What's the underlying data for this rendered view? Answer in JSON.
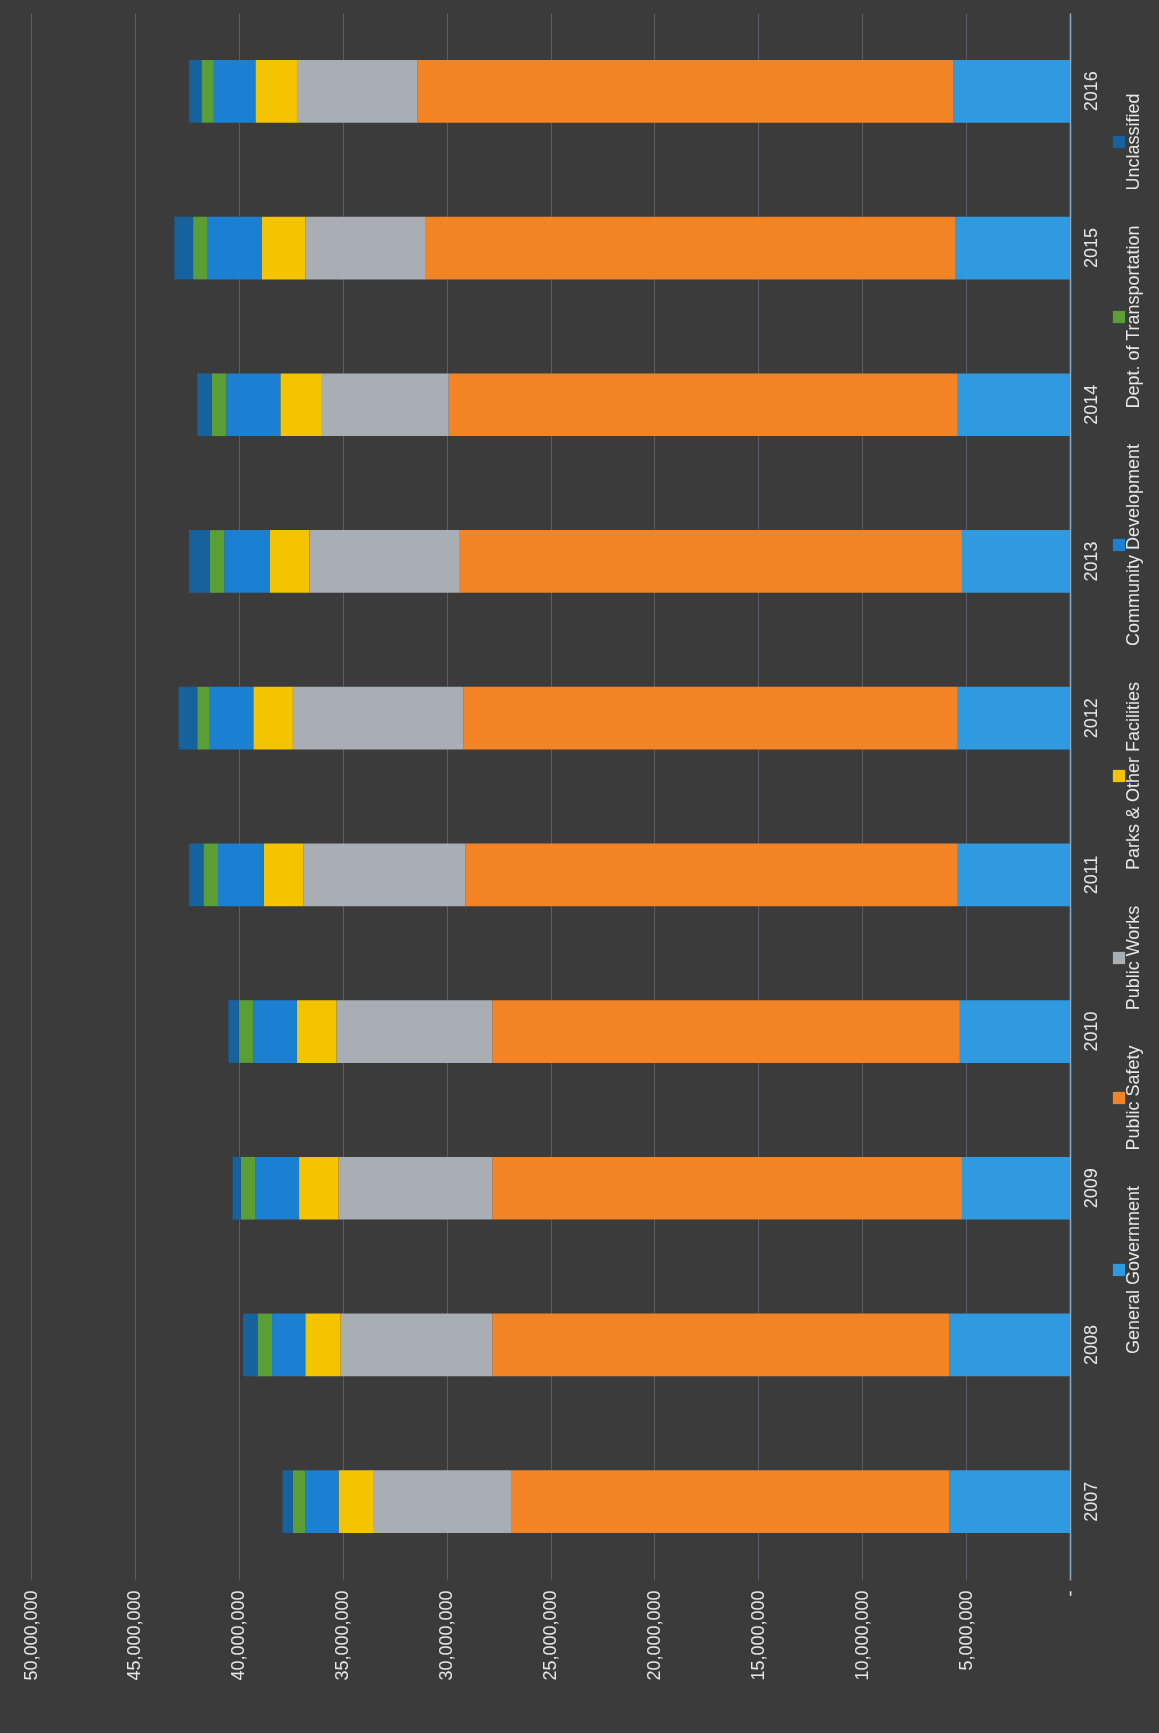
{
  "chart_data": {
    "type": "bar",
    "stacked": true,
    "orientation": "horizontal",
    "categories": [
      "2016",
      "2015",
      "2014",
      "2013",
      "2012",
      "2011",
      "2010",
      "2009",
      "2008",
      "2007"
    ],
    "series": [
      {
        "name": "General Government",
        "color": "#2f9ae0",
        "values": [
          5600000,
          5500000,
          5400000,
          5200000,
          5400000,
          5400000,
          5300000,
          5200000,
          5800000,
          5800000
        ]
      },
      {
        "name": "Public Safety",
        "color": "#f28426",
        "values": [
          25800000,
          25500000,
          24500000,
          24200000,
          23800000,
          23700000,
          22500000,
          22600000,
          22000000,
          21100000
        ]
      },
      {
        "name": "Public Works",
        "color": "#a8aeb4",
        "values": [
          5800000,
          5800000,
          6100000,
          7200000,
          8200000,
          7800000,
          7500000,
          7400000,
          7300000,
          6600000
        ]
      },
      {
        "name": "Parks & Other Facilities",
        "color": "#f5c400",
        "values": [
          2000000,
          2100000,
          2000000,
          1900000,
          1900000,
          1900000,
          1900000,
          1900000,
          1700000,
          1700000
        ]
      },
      {
        "name": "Community Development",
        "color": "#1b7fd2",
        "values": [
          2000000,
          2600000,
          2600000,
          2200000,
          2100000,
          2200000,
          2100000,
          2100000,
          1600000,
          1600000
        ]
      },
      {
        "name": "Dept. of Transportation",
        "color": "#5c9e36",
        "values": [
          600000,
          700000,
          700000,
          700000,
          600000,
          700000,
          700000,
          700000,
          700000,
          600000
        ]
      },
      {
        "name": "Unclassified",
        "color": "#16629f",
        "values": [
          600000,
          900000,
          700000,
          1000000,
          900000,
          700000,
          500000,
          400000,
          700000,
          500000
        ]
      }
    ],
    "xlim": [
      50000000,
      0
    ],
    "xticks": [
      {
        "value": 50000000,
        "label": "50,000,000"
      },
      {
        "value": 45000000,
        "label": "45,000,000"
      },
      {
        "value": 40000000,
        "label": "40,000,000"
      },
      {
        "value": 35000000,
        "label": "35,000,000"
      },
      {
        "value": 30000000,
        "label": "30,000,000"
      },
      {
        "value": 25000000,
        "label": "25,000,000"
      },
      {
        "value": 20000000,
        "label": "20,000,000"
      },
      {
        "value": 15000000,
        "label": "15,000,000"
      },
      {
        "value": 10000000,
        "label": "10,000,000"
      },
      {
        "value": 5000000,
        "label": "5,000,000"
      },
      {
        "value": 0,
        "label": "-"
      }
    ],
    "grid": "x",
    "legend": "right"
  }
}
